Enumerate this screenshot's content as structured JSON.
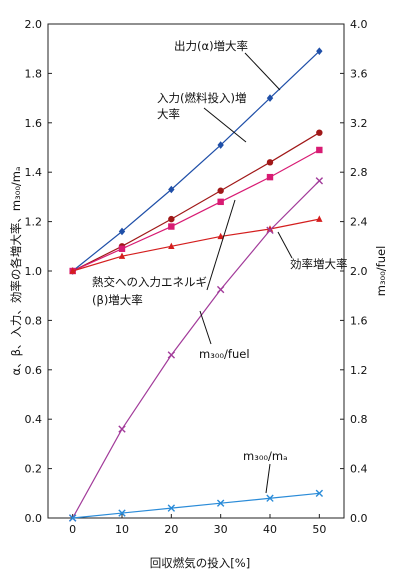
{
  "chart_data": {
    "type": "line",
    "title": "",
    "xlabel": "回収燃気の投入[%]",
    "ylabel_left": "α、β、入力、効率の各増大率、m₃₀₀/mₐ",
    "ylabel_right": "m₃₀₀/fuel",
    "x": [
      0,
      10,
      20,
      30,
      40,
      50
    ],
    "xlim": [
      -5,
      55
    ],
    "ylim_left": [
      0.0,
      2.0
    ],
    "ylim_right": [
      0.0,
      4.0
    ],
    "x_ticks": [
      "0",
      "10",
      "20",
      "30",
      "40",
      "50"
    ],
    "y_left_ticks": [
      "0.0",
      "0.2",
      "0.4",
      "0.6",
      "0.8",
      "1.0",
      "1.2",
      "1.4",
      "1.6",
      "1.8",
      "2.0"
    ],
    "y_right_ticks": [
      "0.0",
      "0.4",
      "0.8",
      "1.2",
      "1.6",
      "2.0",
      "2.4",
      "2.8",
      "3.2",
      "3.6",
      "4.0"
    ],
    "grid": false,
    "series": [
      {
        "name": "出力(α)増大率",
        "axis": "left",
        "color": "#1f4fa8",
        "marker": "diamond",
        "values": [
          1.0,
          1.16,
          1.33,
          1.51,
          1.7,
          1.89
        ]
      },
      {
        "name": "入力(燃料投入)増大率",
        "axis": "left",
        "color": "#a01818",
        "marker": "circle",
        "values": [
          1.0,
          1.1,
          1.21,
          1.325,
          1.44,
          1.56
        ]
      },
      {
        "name": "熱交への入力エネルギ(β)増大率",
        "axis": "left",
        "color": "#d81b73",
        "marker": "square",
        "values": [
          1.0,
          1.09,
          1.18,
          1.28,
          1.38,
          1.49
        ]
      },
      {
        "name": "効率増大率",
        "axis": "left",
        "color": "#d41e1e",
        "marker": "triangle",
        "values": [
          1.0,
          1.06,
          1.1,
          1.14,
          1.17,
          1.21
        ]
      },
      {
        "name": "m₃₀₀/fuel",
        "axis": "right",
        "color": "#a23b9a",
        "marker": "x",
        "values": [
          0.0,
          0.72,
          1.32,
          1.85,
          2.33,
          2.73
        ]
      },
      {
        "name": "m₃₀₀/mₐ",
        "axis": "left",
        "color": "#2a8bd8",
        "marker": "x",
        "values": [
          0.0,
          0.02,
          0.04,
          0.06,
          0.08,
          0.1
        ]
      }
    ],
    "annotations": [
      "出力(α)増大率",
      "入力(燃料投入)増",
      "大率",
      "熱交への入力エネルギ",
      "(β)増大率",
      "効率増大率",
      "m₃₀₀/fuel",
      "m₃₀₀/mₐ"
    ]
  }
}
